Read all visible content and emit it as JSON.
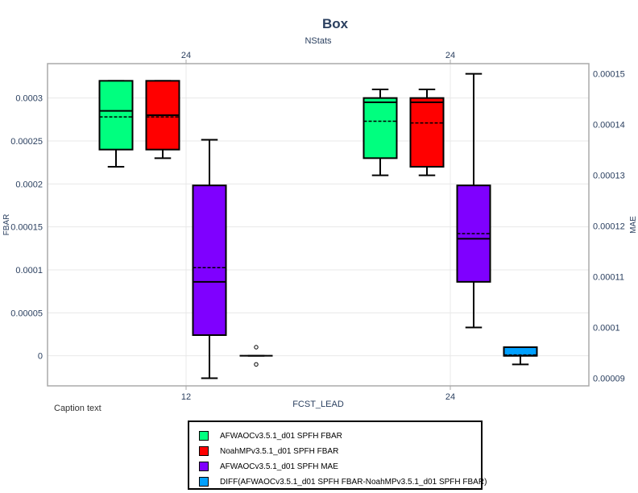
{
  "chart_data": {
    "type": "box",
    "title": "Box",
    "top_axis_label": "NStats",
    "xlabel": "FCST_LEAD",
    "ylabel_left": "FBAR",
    "ylabel_right": "MAE",
    "caption": "Caption text",
    "categories": [
      "12",
      "24"
    ],
    "top_tick_labels": [
      "24",
      "24"
    ],
    "ylim_left": [
      -3.5e-05,
      0.00034
    ],
    "ylim_right": [
      8.85e-05,
      0.000152
    ],
    "yticks_left": [
      {
        "value": 0,
        "label": "0"
      },
      {
        "value": 5e-05,
        "label": "0.00005"
      },
      {
        "value": 0.0001,
        "label": "0.0001"
      },
      {
        "value": 0.00015,
        "label": "0.00015"
      },
      {
        "value": 0.0002,
        "label": "0.0002"
      },
      {
        "value": 0.00025,
        "label": "0.00025"
      },
      {
        "value": 0.0003,
        "label": "0.0003"
      }
    ],
    "yticks_right": [
      {
        "value": 9e-05,
        "label": "0.00009"
      },
      {
        "value": 0.0001,
        "label": "0.0001"
      },
      {
        "value": 0.00011,
        "label": "0.00011"
      },
      {
        "value": 0.00012,
        "label": "0.00012"
      },
      {
        "value": 0.00013,
        "label": "0.00013"
      },
      {
        "value": 0.00014,
        "label": "0.00014"
      },
      {
        "value": 0.00015,
        "label": "0.00015"
      }
    ],
    "grid": true,
    "legend_position": "bottom-center",
    "series": [
      {
        "name": "AFWAOCv3.5.1_d01 SPFH FBAR",
        "color": "#00ff7f",
        "axis": "left",
        "boxes": [
          {
            "category": "12",
            "min": 0.00022,
            "q1": 0.00024,
            "median": 0.000285,
            "mean": 0.000278,
            "q3": 0.00032,
            "max": 0.00032,
            "outliers": []
          },
          {
            "category": "24",
            "min": 0.00021,
            "q1": 0.00023,
            "median": 0.000295,
            "mean": 0.000273,
            "q3": 0.0003,
            "max": 0.00031,
            "outliers": []
          }
        ]
      },
      {
        "name": "NoahMPv3.5.1_d01 SPFH FBAR",
        "color": "#ff0000",
        "axis": "left",
        "boxes": [
          {
            "category": "12",
            "min": 0.00023,
            "q1": 0.00024,
            "median": 0.00028,
            "mean": 0.000278,
            "q3": 0.00032,
            "max": 0.00032,
            "outliers": []
          },
          {
            "category": "24",
            "min": 0.00021,
            "q1": 0.00022,
            "median": 0.000295,
            "mean": 0.000271,
            "q3": 0.0003,
            "max": 0.00031,
            "outliers": []
          }
        ]
      },
      {
        "name": "AFWAOCv3.5.1_d01 SPFH MAE",
        "color": "#7f00ff",
        "axis": "right",
        "boxes": [
          {
            "category": "12",
            "min": 9e-05,
            "q1": 9.85e-05,
            "median": 0.000109,
            "mean": 0.0001118,
            "q3": 0.000128,
            "max": 0.000137,
            "outliers": []
          },
          {
            "category": "24",
            "min": 0.0001,
            "q1": 0.000109,
            "median": 0.0001175,
            "mean": 0.0001185,
            "q3": 0.000128,
            "max": 0.00015,
            "outliers": []
          }
        ]
      },
      {
        "name": "DIFF(AFWAOCv3.5.1_d01 SPFH FBAR-NoahMPv3.5.1_d01 SPFH FBAR)",
        "color": "#00a0ff",
        "axis": "left",
        "boxes": [
          {
            "category": "12",
            "min": 0,
            "q1": 0,
            "median": 0,
            "mean": 0,
            "q3": 0,
            "max": 0,
            "outliers": [
              1e-05,
              -1e-05
            ]
          },
          {
            "category": "24",
            "min": -1e-05,
            "q1": 0,
            "median": 0,
            "mean": 1e-06,
            "q3": 1e-05,
            "max": 1e-05,
            "outliers": []
          }
        ]
      }
    ]
  }
}
